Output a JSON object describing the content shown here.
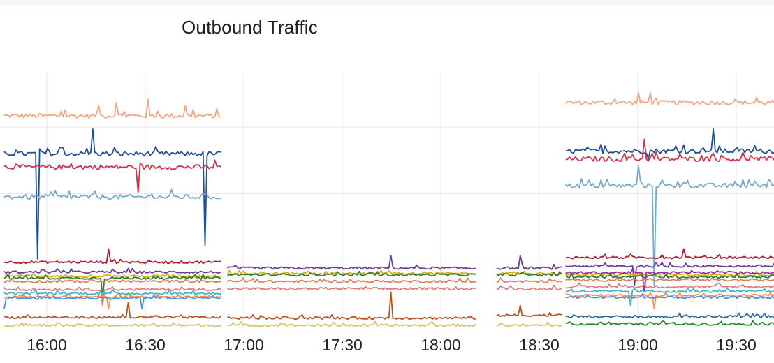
{
  "chart_data": {
    "type": "line",
    "title": "Outbound Traffic",
    "xlabel": "",
    "ylabel": "",
    "x_ticks": [
      "16:00",
      "16:30",
      "17:00",
      "17:30",
      "18:00",
      "18:30",
      "19:00",
      "19:30"
    ],
    "x_range": [
      "15:47",
      "19:43"
    ],
    "y_range": [
      0,
      40
    ],
    "grid": true,
    "legend": "none",
    "segments": [
      {
        "start": "15:47",
        "end": "16:53"
      },
      {
        "start": "16:55",
        "end": "18:11"
      },
      {
        "start": "18:17",
        "end": "18:37"
      },
      {
        "start": "18:38",
        "end": "19:43"
      }
    ],
    "series": [
      {
        "color": "#f4a582",
        "base": [
          31.5,
          null,
          null,
          33.5
        ],
        "segments": [
          0,
          3
        ],
        "spikes": [
          [
            "16:16",
            33
          ],
          [
            "16:21",
            33.5
          ],
          [
            "16:31",
            34
          ],
          [
            "16:42",
            33
          ],
          [
            "19:00",
            35
          ],
          [
            "19:04",
            35
          ]
        ]
      },
      {
        "color": "#1f4e99",
        "base": [
          25.8,
          null,
          null,
          26.2
        ],
        "segments": [
          0,
          3
        ],
        "spikes": [
          [
            "15:57",
            10
          ],
          [
            "16:14",
            29.5
          ],
          [
            "16:48",
            12
          ],
          [
            "19:03",
            25
          ],
          [
            "19:23",
            29.5
          ]
        ]
      },
      {
        "color": "#d6304a",
        "base": [
          23.8,
          null,
          null,
          25.0
        ],
        "segments": [
          0,
          3
        ],
        "spikes": [
          [
            "16:28",
            20
          ],
          [
            "19:02",
            28
          ]
        ]
      },
      {
        "color": "#74a9cf",
        "base": [
          19.3,
          null,
          null,
          21.0
        ],
        "segments": [
          0,
          3
        ],
        "spikes": [
          [
            "19:00",
            24
          ],
          [
            "19:05",
            6
          ]
        ]
      },
      {
        "color": "#b2182b",
        "base": [
          9.5,
          null,
          null,
          10.2
        ],
        "segments": [
          0,
          3
        ],
        "spikes": [
          [
            "16:19",
            11.5
          ],
          [
            "19:14",
            11.5
          ]
        ]
      },
      {
        "color": "#6a3d9a",
        "base": [
          8.0,
          8.6,
          8.6,
          8.9
        ],
        "segments": [
          0,
          1,
          2,
          3
        ],
        "spikes": [
          [
            "17:45",
            10.5
          ],
          [
            "18:24",
            10.5
          ],
          [
            "18:59",
            6
          ]
        ]
      },
      {
        "color": "#e6ab02",
        "base": [
          7.4,
          7.8,
          7.8,
          7.6
        ],
        "segments": [
          0,
          1,
          2,
          3
        ],
        "spikes": []
      },
      {
        "color": "#2e7d32",
        "base": [
          7.1,
          7.6,
          7.6,
          7.3
        ],
        "segments": [
          0,
          1,
          2,
          3
        ],
        "spikes": [
          [
            "16:17",
            4.5
          ]
        ]
      },
      {
        "color": "#9c27b0",
        "base": [
          null,
          null,
          null,
          7.9
        ],
        "segments": [
          3
        ],
        "spikes": [
          [
            "19:02",
            5
          ]
        ]
      },
      {
        "color": "#e07b5a",
        "base": [
          6.6,
          6.6,
          6.6,
          6.8
        ],
        "segments": [
          0,
          1,
          2,
          3
        ],
        "spikes": []
      },
      {
        "color": "#e37979",
        "base": [
          5.4,
          5.5,
          5.5,
          5.8
        ],
        "segments": [
          0,
          1,
          2,
          3
        ],
        "spikes": [
          [
            "16:17",
            3
          ]
        ]
      },
      {
        "color": "#fc8d59",
        "base": [
          4.3,
          null,
          null,
          4.5
        ],
        "segments": [
          0,
          3
        ],
        "spikes": [
          [
            "16:19",
            2.5
          ],
          [
            "19:05",
            2.5
          ]
        ]
      },
      {
        "color": "#41b6c4",
        "base": [
          4.8,
          null,
          null,
          5.1
        ],
        "segments": [
          0,
          3
        ],
        "spikes": [
          [
            "18:58",
            3
          ]
        ]
      },
      {
        "color": "#4a90e2",
        "base": [
          4.1,
          null,
          null,
          4.2
        ],
        "segments": [
          0,
          3
        ],
        "spikes": [
          [
            "15:47",
            2.5
          ],
          [
            "16:29",
            2.5
          ]
        ]
      },
      {
        "color": "#b85423",
        "base": [
          1.2,
          1.1,
          1.5,
          null
        ],
        "segments": [
          0,
          1,
          2
        ],
        "spikes": [
          [
            "16:25",
            3.5
          ],
          [
            "17:45",
            5.0
          ],
          [
            "18:24",
            3.0
          ]
        ]
      },
      {
        "color": "#2c6ea3",
        "base": [
          null,
          null,
          null,
          1.3
        ],
        "segments": [
          3
        ],
        "spikes": []
      },
      {
        "color": "#228b22",
        "base": [
          null,
          null,
          null,
          0.2
        ],
        "segments": [
          3
        ],
        "spikes": []
      },
      {
        "color": "#d9c36a",
        "base": [
          0.0,
          0.0,
          0.0,
          null
        ],
        "segments": [
          0,
          1,
          2
        ],
        "spikes": []
      }
    ]
  }
}
